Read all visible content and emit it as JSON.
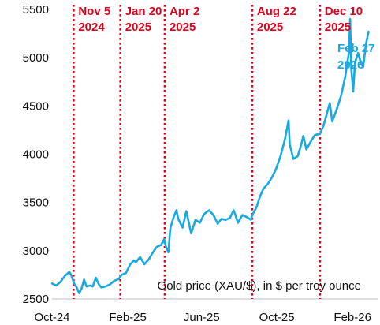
{
  "chart_data": {
    "type": "line",
    "title": "",
    "xlabel": "",
    "ylabel": "",
    "annotation": "Gold price (XAU/$), in $ per troy ounce",
    "x_ticks": [
      "Oct-24",
      "Feb-25",
      "Jun-25",
      "Oct-25",
      "Feb-26"
    ],
    "x_tick_dates": [
      "2024-10-01",
      "2025-02-01",
      "2025-06-01",
      "2025-10-01",
      "2026-02-01"
    ],
    "xlim": [
      "2024-10-01",
      "2026-03-15"
    ],
    "y_ticks": [
      2500,
      3000,
      3500,
      4000,
      4500,
      5000,
      5500
    ],
    "ylim": [
      2500,
      5500
    ],
    "grid": false,
    "colors": {
      "series": "#18a9e0",
      "events": "#e0001b"
    },
    "events": [
      {
        "date": "2024-11-05",
        "line1": "Nov 5",
        "line2": "2024"
      },
      {
        "date": "2025-01-20",
        "line1": "Jan 20",
        "line2": "2025"
      },
      {
        "date": "2025-04-02",
        "line1": "Apr 2",
        "line2": "2025"
      },
      {
        "date": "2025-08-22",
        "line1": "Aug 22",
        "line2": "2025"
      },
      {
        "date": "2025-12-10",
        "line1": "Dec 10",
        "line2": "2025"
      }
    ],
    "end_label": {
      "line1": "Feb 27",
      "line2": "2026"
    },
    "series": [
      {
        "points": [
          [
            "2024-10-01",
            2660
          ],
          [
            "2024-10-08",
            2640
          ],
          [
            "2024-10-15",
            2680
          ],
          [
            "2024-10-22",
            2740
          ],
          [
            "2024-10-29",
            2780
          ],
          [
            "2024-11-01",
            2750
          ],
          [
            "2024-11-06",
            2660
          ],
          [
            "2024-11-10",
            2620
          ],
          [
            "2024-11-14",
            2560
          ],
          [
            "2024-11-18",
            2610
          ],
          [
            "2024-11-22",
            2700
          ],
          [
            "2024-11-26",
            2630
          ],
          [
            "2024-12-02",
            2640
          ],
          [
            "2024-12-06",
            2630
          ],
          [
            "2024-12-11",
            2720
          ],
          [
            "2024-12-16",
            2650
          ],
          [
            "2024-12-20",
            2620
          ],
          [
            "2024-12-27",
            2630
          ],
          [
            "2025-01-03",
            2650
          ],
          [
            "2025-01-10",
            2690
          ],
          [
            "2025-01-17",
            2705
          ],
          [
            "2025-01-22",
            2750
          ],
          [
            "2025-01-29",
            2770
          ],
          [
            "2025-02-05",
            2860
          ],
          [
            "2025-02-11",
            2900
          ],
          [
            "2025-02-14",
            2880
          ],
          [
            "2025-02-21",
            2935
          ],
          [
            "2025-02-28",
            2860
          ],
          [
            "2025-03-07",
            2910
          ],
          [
            "2025-03-14",
            2985
          ],
          [
            "2025-03-20",
            3040
          ],
          [
            "2025-03-27",
            3060
          ],
          [
            "2025-04-01",
            3120
          ],
          [
            "2025-04-04",
            3040
          ],
          [
            "2025-04-08",
            2985
          ],
          [
            "2025-04-11",
            3230
          ],
          [
            "2025-04-16",
            3340
          ],
          [
            "2025-04-21",
            3420
          ],
          [
            "2025-04-24",
            3330
          ],
          [
            "2025-05-01",
            3240
          ],
          [
            "2025-05-07",
            3410
          ],
          [
            "2025-05-15",
            3180
          ],
          [
            "2025-05-22",
            3320
          ],
          [
            "2025-05-29",
            3290
          ],
          [
            "2025-06-05",
            3380
          ],
          [
            "2025-06-13",
            3420
          ],
          [
            "2025-06-20",
            3370
          ],
          [
            "2025-06-27",
            3280
          ],
          [
            "2025-07-03",
            3330
          ],
          [
            "2025-07-10",
            3320
          ],
          [
            "2025-07-17",
            3340
          ],
          [
            "2025-07-23",
            3420
          ],
          [
            "2025-07-30",
            3290
          ],
          [
            "2025-08-06",
            3370
          ],
          [
            "2025-08-13",
            3350
          ],
          [
            "2025-08-20",
            3320
          ],
          [
            "2025-08-22",
            3370
          ],
          [
            "2025-08-29",
            3450
          ],
          [
            "2025-09-03",
            3550
          ],
          [
            "2025-09-09",
            3640
          ],
          [
            "2025-09-16",
            3690
          ],
          [
            "2025-09-23",
            3760
          ],
          [
            "2025-09-30",
            3850
          ],
          [
            "2025-10-07",
            3980
          ],
          [
            "2025-10-14",
            4150
          ],
          [
            "2025-10-20",
            4350
          ],
          [
            "2025-10-22",
            4100
          ],
          [
            "2025-10-28",
            3950
          ],
          [
            "2025-11-04",
            3980
          ],
          [
            "2025-11-10",
            4110
          ],
          [
            "2025-11-13",
            4190
          ],
          [
            "2025-11-18",
            4050
          ],
          [
            "2025-11-25",
            4130
          ],
          [
            "2025-12-02",
            4200
          ],
          [
            "2025-12-10",
            4210
          ],
          [
            "2025-12-16",
            4300
          ],
          [
            "2025-12-22",
            4440
          ],
          [
            "2025-12-26",
            4530
          ],
          [
            "2025-12-30",
            4340
          ],
          [
            "2026-01-06",
            4460
          ],
          [
            "2026-01-13",
            4600
          ],
          [
            "2026-01-20",
            4800
          ],
          [
            "2026-01-26",
            5050
          ],
          [
            "2026-01-28",
            5400
          ],
          [
            "2026-01-30",
            4880
          ],
          [
            "2026-02-02",
            4650
          ],
          [
            "2026-02-05",
            4950
          ],
          [
            "2026-02-10",
            5050
          ],
          [
            "2026-02-13",
            4980
          ],
          [
            "2026-02-18",
            4900
          ],
          [
            "2026-02-23",
            5150
          ],
          [
            "2026-02-27",
            5270
          ]
        ]
      }
    ]
  }
}
